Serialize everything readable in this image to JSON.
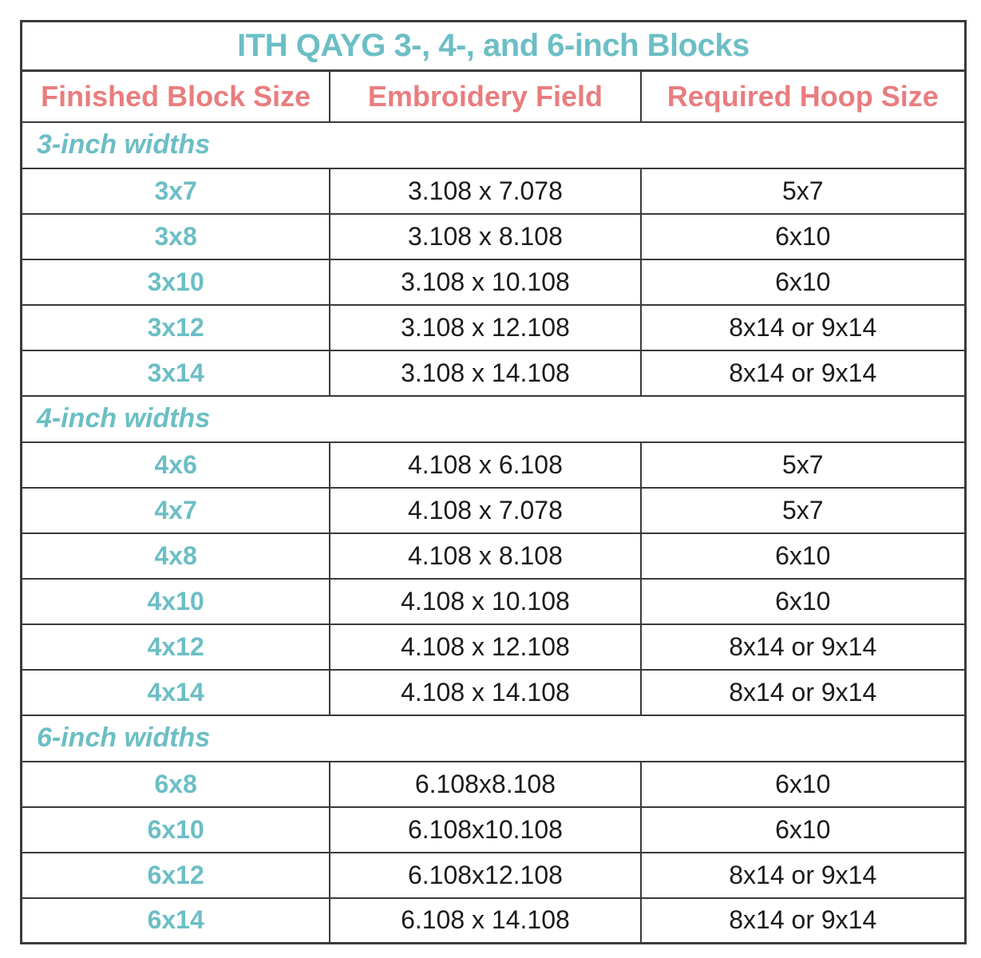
{
  "title": "ITH QAYG 3-, 4-, and 6-inch Blocks",
  "columns": [
    "Finished Block Size",
    "Embroidery Field",
    "Required Hoop Size"
  ],
  "colors": {
    "teal": "#6CBEC5",
    "coral": "#E87D7F",
    "border": "#3a3a3a",
    "text": "#1b1b1b",
    "background": "#ffffff"
  },
  "sections": [
    {
      "label": "3-inch widths",
      "rows": [
        {
          "finished_block_size": "3x7",
          "embroidery_field": "3.108 x 7.078",
          "required_hoop_size": "5x7"
        },
        {
          "finished_block_size": "3x8",
          "embroidery_field": "3.108 x 8.108",
          "required_hoop_size": "6x10"
        },
        {
          "finished_block_size": "3x10",
          "embroidery_field": "3.108 x 10.108",
          "required_hoop_size": "6x10"
        },
        {
          "finished_block_size": "3x12",
          "embroidery_field": "3.108 x 12.108",
          "required_hoop_size": "8x14 or 9x14"
        },
        {
          "finished_block_size": "3x14",
          "embroidery_field": "3.108 x 14.108",
          "required_hoop_size": "8x14 or 9x14"
        }
      ]
    },
    {
      "label": "4-inch widths",
      "rows": [
        {
          "finished_block_size": "4x6",
          "embroidery_field": "4.108 x 6.108",
          "required_hoop_size": "5x7"
        },
        {
          "finished_block_size": "4x7",
          "embroidery_field": "4.108 x 7.078",
          "required_hoop_size": "5x7"
        },
        {
          "finished_block_size": "4x8",
          "embroidery_field": "4.108 x 8.108",
          "required_hoop_size": "6x10"
        },
        {
          "finished_block_size": "4x10",
          "embroidery_field": "4.108 x 10.108",
          "required_hoop_size": "6x10"
        },
        {
          "finished_block_size": "4x12",
          "embroidery_field": "4.108 x 12.108",
          "required_hoop_size": "8x14 or 9x14"
        },
        {
          "finished_block_size": "4x14",
          "embroidery_field": "4.108 x 14.108",
          "required_hoop_size": "8x14 or 9x14"
        }
      ]
    },
    {
      "label": "6-inch widths",
      "rows": [
        {
          "finished_block_size": "6x8",
          "embroidery_field": "6.108x8.108",
          "required_hoop_size": "6x10"
        },
        {
          "finished_block_size": "6x10",
          "embroidery_field": "6.108x10.108",
          "required_hoop_size": "6x10"
        },
        {
          "finished_block_size": "6x12",
          "embroidery_field": "6.108x12.108",
          "required_hoop_size": "8x14 or 9x14"
        },
        {
          "finished_block_size": "6x14",
          "embroidery_field": "6.108 x 14.108",
          "required_hoop_size": "8x14 or 9x14"
        }
      ]
    }
  ]
}
